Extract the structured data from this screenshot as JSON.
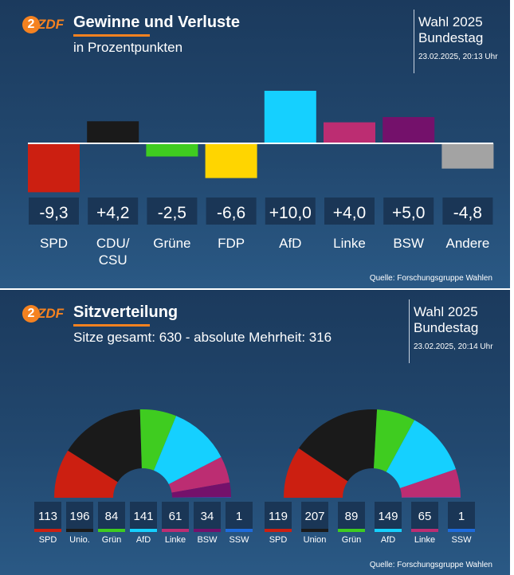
{
  "panel1": {
    "logo": "ZDF",
    "title": "Gewinne und Verluste",
    "subtitle": "in Prozentpunkten",
    "election_line1": "Wahl 2025",
    "election_line2": "Bundestag",
    "timestamp": "23.02.2025, 20:13 Uhr",
    "source": "Quelle: Forschungsgruppe Wahlen",
    "value_labels": [
      "-9,3",
      "+4,2",
      "-2,5",
      "-6,6",
      "+10,0",
      "+4,0",
      "+5,0",
      "-4,8"
    ],
    "party_labels": [
      [
        "SPD"
      ],
      [
        "CDU/",
        "CSU"
      ],
      [
        "Grüne"
      ],
      [
        "FDP"
      ],
      [
        "AfD"
      ],
      [
        "Linke"
      ],
      [
        "BSW"
      ],
      [
        "Andere"
      ]
    ]
  },
  "panel2": {
    "logo": "ZDF",
    "title": "Sitzverteilung",
    "subtitle": "Sitze gesamt: 630 - absolute Mehrheit: 316",
    "election_line1": "Wahl 2025",
    "election_line2": "Bundestag",
    "timestamp": "23.02.2025, 20:14 Uhr",
    "source": "Quelle: Forschungsgruppe Wahlen"
  },
  "chart_data": [
    {
      "type": "bar",
      "title": "Gewinne und Verluste",
      "subtitle": "in Prozentpunkten",
      "categories": [
        "SPD",
        "CDU/CSU",
        "Grüne",
        "FDP",
        "AfD",
        "Linke",
        "BSW",
        "Andere"
      ],
      "values": [
        -9.3,
        4.2,
        -2.5,
        -6.6,
        10.0,
        4.0,
        5.0,
        -4.8
      ],
      "colors": [
        "#cc1f11",
        "#1a1a1a",
        "#3fcc20",
        "#ffd500",
        "#15d0ff",
        "#bc2d72",
        "#74116b",
        "#a3a3a3"
      ],
      "xlabel": "",
      "ylabel": "",
      "ylim": [
        -10,
        10
      ]
    },
    {
      "type": "pie",
      "subtype": "half-donut",
      "title": "Sitzverteilung",
      "categories": [
        "SPD",
        "Unio.",
        "Grün",
        "AfD",
        "Linke",
        "BSW",
        "SSW"
      ],
      "values": [
        113,
        196,
        84,
        141,
        61,
        34,
        1
      ],
      "colors": [
        "#cc1f11",
        "#1a1a1a",
        "#3fcc20",
        "#15d0ff",
        "#bc2d72",
        "#74116b",
        "#1e6bdc"
      ]
    },
    {
      "type": "pie",
      "subtype": "half-donut",
      "title": "Sitzverteilung",
      "categories": [
        "SPD",
        "Union",
        "Grün",
        "AfD",
        "Linke",
        "SSW"
      ],
      "values": [
        119,
        207,
        89,
        149,
        65,
        1
      ],
      "colors": [
        "#cc1f11",
        "#1a1a1a",
        "#3fcc20",
        "#15d0ff",
        "#bc2d72",
        "#1e6bdc"
      ]
    }
  ]
}
